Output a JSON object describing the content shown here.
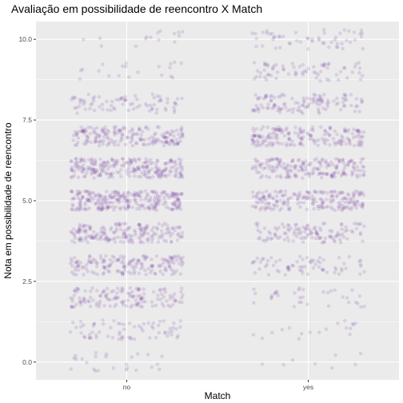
{
  "chart_data": {
    "type": "scatter",
    "title": "Avaliação em possibilidade de reencontro X Match",
    "xlabel": "Match",
    "ylabel": "Nota em possibilidade de reencontro",
    "categories": [
      "no",
      "yes"
    ],
    "y_ticks": [
      "0.0",
      "2.5",
      "5.0",
      "7.5",
      "10.0"
    ],
    "y_tick_values": [
      0,
      2.5,
      5,
      7.5,
      10
    ],
    "ylim": [
      -0.55,
      10.55
    ],
    "jitter": true,
    "grid": true,
    "point_color": "#6a2c9c",
    "point_alpha": 0.15,
    "panel_background": "#ebebeb",
    "series": [
      {
        "category": "no",
        "y_levels": [
          0,
          1,
          2,
          3,
          4,
          5,
          6,
          7,
          8,
          9,
          10
        ],
        "relative_counts": [
          25,
          70,
          140,
          170,
          190,
          270,
          240,
          190,
          80,
          20,
          15
        ]
      },
      {
        "category": "yes",
        "y_levels": [
          0,
          1,
          2,
          3,
          4,
          5,
          6,
          7,
          8,
          9,
          10
        ],
        "relative_counts": [
          8,
          18,
          35,
          70,
          120,
          200,
          190,
          180,
          120,
          70,
          55
        ]
      }
    ]
  }
}
